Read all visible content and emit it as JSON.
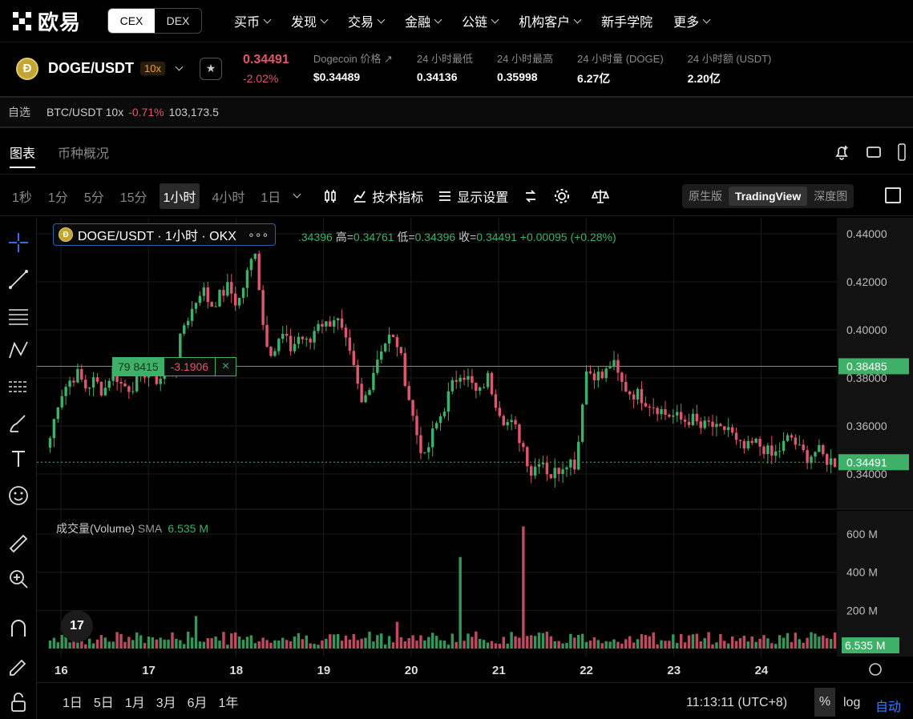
{
  "nav": {
    "logo_text": "欧易",
    "seg": [
      "CEX",
      "DEX"
    ],
    "menu": [
      "买币",
      "发现",
      "交易",
      "金融",
      "公链",
      "机构客户",
      "新手学院",
      "更多"
    ],
    "menu_chevrons": [
      true,
      true,
      true,
      true,
      true,
      true,
      false,
      true
    ]
  },
  "ticker": {
    "coin_glyph": "Ð",
    "pair": "DOGE/USDT",
    "leverage": "10x",
    "price": "0.34491",
    "change": "-2.02%",
    "stats": [
      {
        "label": "Dogecoin 价格 ↗",
        "value": "$0.34489"
      },
      {
        "label": "24 小时最低",
        "value": "0.34136"
      },
      {
        "label": "24 小时最高",
        "value": "0.35998"
      },
      {
        "label": "24 小时量 (DOGE)",
        "value": "6.27亿"
      },
      {
        "label": "24 小时额 (USDT)",
        "value": "2.20亿"
      }
    ]
  },
  "favbar": {
    "label": "自选",
    "pair": "BTC/USDT 10x",
    "change": "-0.71%",
    "value": "103,173.5"
  },
  "tabs": [
    "图表",
    "币种概况"
  ],
  "toolbar": {
    "timeframes": [
      "1秒",
      "1分",
      "5分",
      "15分",
      "1小时",
      "4小时",
      "1日"
    ],
    "active_timeframe": "1小时",
    "indicators": "技术指标",
    "display": "显示设置",
    "views": [
      "原生版",
      "TradingView",
      "深度图"
    ],
    "active_view": "TradingView"
  },
  "legend": {
    "title": "DOGE/USDT · 1小时 · OKX",
    "dots": "∘∘∘"
  },
  "ohlc": {
    "o_tail": ".34396",
    "h_label": "高=",
    "h": "0.34761",
    "l_label": "低=",
    "l": "0.34396",
    "c_label": "收=",
    "c": "0.34491",
    "chg": "+0.00095 (+0.28%)"
  },
  "line_edit": {
    "left": "79 8415",
    "mid": "-3.1906",
    "close": "×"
  },
  "volume": {
    "label": "成交量(Volume)",
    "sma": "SMA",
    "value": "6.535 M"
  },
  "tv_logo": "17",
  "bottom": {
    "ranges": [
      "1日",
      "5日",
      "1月",
      "3月",
      "6月",
      "1年"
    ],
    "clock": "11:13:11 (UTC+8)",
    "pct": "%",
    "log": "log",
    "auto": "自动"
  },
  "chart_data": {
    "type": "candlestick",
    "symbol": "DOGE/USDT",
    "interval": "1小时",
    "x_ticks": [
      "16",
      "17",
      "18",
      "19",
      "20",
      "21",
      "22",
      "23",
      "24"
    ],
    "y_ticks": [
      "0.44000",
      "0.42000",
      "0.40000",
      "0.38000",
      "0.36000",
      "0.34000"
    ],
    "ylim": [
      0.332,
      0.444
    ],
    "horizontal_line": 0.38485,
    "horizontal_line_label": "0.38485",
    "last_price": 0.34491,
    "last_price_label": "0.34491",
    "close_path": [
      0.355,
      0.372,
      0.378,
      0.382,
      0.376,
      0.379,
      0.374,
      0.384,
      0.377,
      0.376,
      0.38,
      0.384,
      0.379,
      0.382,
      0.386,
      0.402,
      0.409,
      0.418,
      0.41,
      0.414,
      0.418,
      0.41,
      0.422,
      0.434,
      0.398,
      0.39,
      0.398,
      0.392,
      0.398,
      0.393,
      0.404,
      0.402,
      0.406,
      0.396,
      0.384,
      0.368,
      0.38,
      0.392,
      0.397,
      0.394,
      0.376,
      0.358,
      0.346,
      0.358,
      0.366,
      0.376,
      0.383,
      0.379,
      0.372,
      0.381,
      0.37,
      0.362,
      0.36,
      0.352,
      0.34,
      0.348,
      0.339,
      0.342,
      0.346,
      0.344,
      0.383,
      0.382,
      0.38,
      0.387,
      0.378,
      0.374,
      0.373,
      0.37,
      0.368,
      0.365,
      0.364,
      0.362,
      0.363,
      0.359,
      0.361,
      0.357,
      0.36,
      0.352,
      0.35,
      0.353,
      0.351,
      0.347,
      0.351,
      0.356,
      0.35,
      0.347,
      0.35,
      0.346,
      0.345
    ],
    "volume_ticks": [
      "600 M",
      "400 M",
      "200 M"
    ],
    "volume_ylim": [
      0,
      680
    ],
    "volume_sma_label": "6.535 M",
    "volume_spikes_millions": [
      {
        "at": 0.525,
        "v": 480
      },
      {
        "at": 0.605,
        "v": 640
      },
      {
        "at": 0.185,
        "v": 170
      },
      {
        "at": 0.44,
        "v": 140
      }
    ]
  },
  "colors": {
    "up": "#3fb068",
    "down": "#e0566f",
    "accent": "#3d7bff",
    "grid": "#1c1c1c"
  }
}
